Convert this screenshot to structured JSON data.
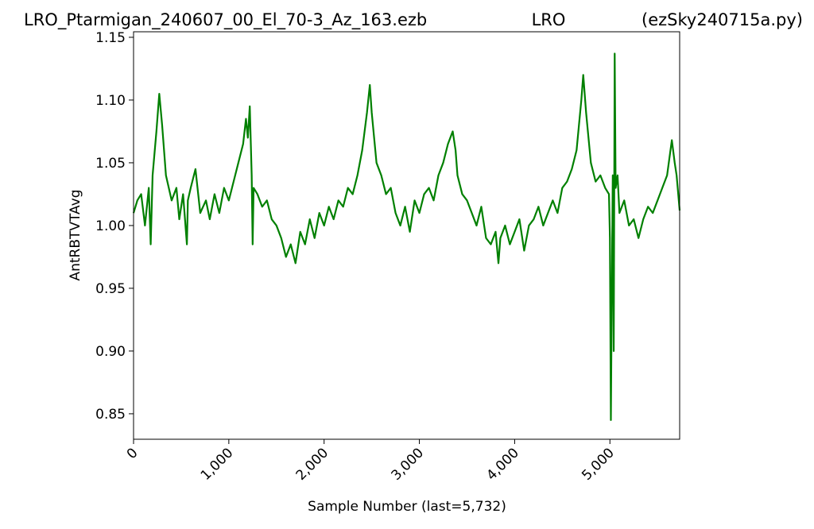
{
  "chart_data": {
    "type": "line",
    "title": "LRO_Ptarmigan_240607_00_El_70-3_Az_163.ezb",
    "site": "LRO",
    "program": "(ezSky240715a.py)",
    "xlabel": "Sample Number (last=5,732)",
    "ylabel": "AntRBTVTAvg",
    "color": "#008000",
    "xlim": [
      0,
      5732
    ],
    "ylim": [
      0.8297,
      1.1544
    ],
    "xticks": [
      0,
      {
        "value": 1000,
        "label": "1,000"
      },
      {
        "value": 2000,
        "label": "2,000"
      },
      {
        "value": 3000,
        "label": "3,000"
      },
      {
        "value": 4000,
        "label": "4,000"
      },
      {
        "value": 5000,
        "label": "5,000"
      }
    ],
    "yticks": [
      0.85,
      {
        "value": 0.9,
        "label": "0.90"
      },
      0.95,
      {
        "value": 1.0,
        "label": "1.00"
      },
      1.05,
      {
        "value": 1.1,
        "label": "1.10"
      },
      1.15
    ],
    "x": [
      0,
      40,
      80,
      120,
      160,
      180,
      200,
      240,
      270,
      300,
      340,
      400,
      450,
      480,
      520,
      560,
      570,
      600,
      650,
      700,
      760,
      800,
      850,
      900,
      950,
      1000,
      1050,
      1100,
      1150,
      1180,
      1200,
      1220,
      1240,
      1250,
      1260,
      1300,
      1350,
      1400,
      1450,
      1500,
      1550,
      1600,
      1650,
      1700,
      1750,
      1800,
      1850,
      1900,
      1950,
      2000,
      2050,
      2100,
      2150,
      2200,
      2250,
      2300,
      2350,
      2400,
      2450,
      2480,
      2500,
      2550,
      2600,
      2650,
      2700,
      2750,
      2800,
      2850,
      2900,
      2950,
      3000,
      3050,
      3100,
      3150,
      3200,
      3250,
      3300,
      3350,
      3380,
      3400,
      3450,
      3500,
      3550,
      3600,
      3650,
      3700,
      3750,
      3800,
      3830,
      3850,
      3900,
      3950,
      4000,
      4050,
      4100,
      4150,
      4200,
      4250,
      4300,
      4350,
      4400,
      4450,
      4500,
      4550,
      4600,
      4650,
      4700,
      4720,
      4750,
      4800,
      4850,
      4900,
      4950,
      4990,
      5000,
      5010,
      5020,
      5030,
      5040,
      5050,
      5060,
      5080,
      5100,
      5150,
      5200,
      5250,
      5300,
      5350,
      5400,
      5450,
      5500,
      5550,
      5600,
      5650,
      5680,
      5700,
      5732
    ],
    "values": [
      1.01,
      1.02,
      1.025,
      1.0,
      1.03,
      0.985,
      1.04,
      1.075,
      1.105,
      1.08,
      1.04,
      1.02,
      1.03,
      1.005,
      1.025,
      0.985,
      1.02,
      1.03,
      1.045,
      1.01,
      1.02,
      1.005,
      1.025,
      1.01,
      1.03,
      1.02,
      1.035,
      1.05,
      1.065,
      1.085,
      1.07,
      1.095,
      1.04,
      0.985,
      1.03,
      1.025,
      1.015,
      1.02,
      1.005,
      1.0,
      0.99,
      0.975,
      0.985,
      0.97,
      0.995,
      0.985,
      1.005,
      0.99,
      1.01,
      1.0,
      1.015,
      1.005,
      1.02,
      1.015,
      1.03,
      1.025,
      1.04,
      1.06,
      1.09,
      1.112,
      1.09,
      1.05,
      1.04,
      1.025,
      1.03,
      1.01,
      1.0,
      1.015,
      0.995,
      1.02,
      1.01,
      1.025,
      1.03,
      1.02,
      1.04,
      1.05,
      1.065,
      1.075,
      1.06,
      1.04,
      1.025,
      1.02,
      1.01,
      1.0,
      1.015,
      0.99,
      0.985,
      0.995,
      0.97,
      0.99,
      1.0,
      0.985,
      0.995,
      1.005,
      0.98,
      1.0,
      1.005,
      1.015,
      1.0,
      1.01,
      1.02,
      1.01,
      1.03,
      1.035,
      1.045,
      1.06,
      1.1,
      1.12,
      1.09,
      1.05,
      1.035,
      1.04,
      1.03,
      1.025,
      0.99,
      0.845,
      0.95,
      1.04,
      0.9,
      1.137,
      1.03,
      1.04,
      1.01,
      1.02,
      1.0,
      1.005,
      0.99,
      1.005,
      1.015,
      1.01,
      1.02,
      1.03,
      1.04,
      1.068,
      1.05,
      1.04,
      1.012
    ]
  }
}
